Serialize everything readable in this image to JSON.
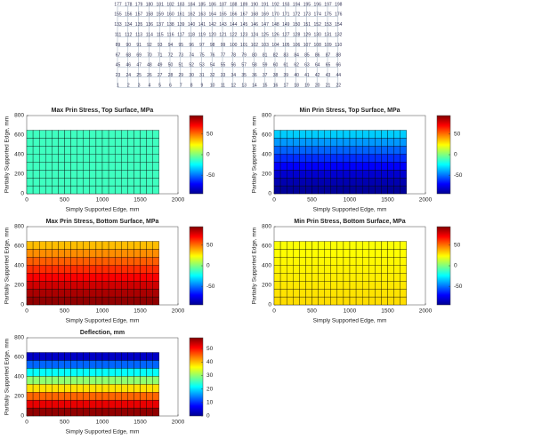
{
  "mesh": {
    "node_rows": [
      [
        177,
        178,
        179,
        180,
        181,
        182,
        183,
        184,
        185,
        186,
        187,
        188,
        189,
        190,
        191,
        192,
        193,
        194,
        195,
        196,
        197,
        198
      ],
      [
        155,
        156,
        157,
        158,
        159,
        160,
        161,
        162,
        163,
        164,
        165,
        166,
        167,
        168,
        169,
        170,
        171,
        172,
        173,
        174,
        175,
        176
      ],
      [
        133,
        134,
        135,
        136,
        137,
        138,
        139,
        140,
        141,
        142,
        143,
        144,
        145,
        146,
        147,
        148,
        149,
        150,
        151,
        152,
        153,
        154
      ],
      [
        111,
        112,
        113,
        114,
        115,
        116,
        117,
        118,
        119,
        120,
        121,
        122,
        123,
        124,
        125,
        126,
        127,
        128,
        129,
        130,
        131,
        132
      ],
      [
        89,
        90,
        91,
        92,
        93,
        94,
        95,
        96,
        97,
        98,
        99,
        100,
        101,
        102,
        103,
        104,
        105,
        106,
        107,
        108,
        109,
        110
      ],
      [
        67,
        68,
        69,
        70,
        71,
        72,
        73,
        74,
        75,
        76,
        77,
        78,
        79,
        80,
        81,
        82,
        83,
        84,
        85,
        86,
        87,
        88
      ],
      [
        45,
        46,
        47,
        48,
        49,
        50,
        51,
        52,
        53,
        54,
        55,
        56,
        57,
        58,
        59,
        60,
        61,
        62,
        63,
        64,
        65,
        66
      ],
      [
        23,
        24,
        25,
        26,
        27,
        28,
        29,
        30,
        31,
        32,
        33,
        34,
        35,
        36,
        37,
        38,
        39,
        40,
        41,
        42,
        43,
        44
      ],
      [
        1,
        2,
        3,
        4,
        5,
        6,
        7,
        8,
        9,
        10,
        11,
        12,
        13,
        14,
        15,
        16,
        17,
        18,
        19,
        20,
        21,
        22
      ]
    ]
  },
  "chart_data": [
    {
      "type": "heatmap",
      "title": "Max Prin Stress, Top Surface, MPa",
      "xlabel": "Simply Supported Edge, mm",
      "ylabel": "Partially Supported Edge, mm",
      "xlim": [
        0,
        2000
      ],
      "xticks": [
        0,
        500,
        1000,
        1500,
        2000
      ],
      "ylim": [
        0,
        800
      ],
      "yticks": [
        0,
        200,
        400,
        600,
        800
      ],
      "clim": [
        -95,
        95
      ],
      "cticks": [
        -50,
        0,
        50
      ],
      "extent": [
        1750,
        650
      ],
      "columns": 21,
      "row_values": [
        -12,
        -12,
        -12,
        -12,
        -12,
        -12,
        -12,
        -12
      ]
    },
    {
      "type": "heatmap",
      "title": "Min Prin Stress, Top Surface, MPa",
      "xlabel": "Simply Supported Edge, mm",
      "ylabel": "Partially Supported Edge, mm",
      "xlim": [
        0,
        2000
      ],
      "xticks": [
        0,
        500,
        1000,
        1500,
        2000
      ],
      "ylim": [
        0,
        800
      ],
      "yticks": [
        0,
        200,
        400,
        600,
        800
      ],
      "clim": [
        -95,
        95
      ],
      "cticks": [
        -50,
        0,
        50
      ],
      "extent": [
        1750,
        650
      ],
      "columns": 21,
      "row_values": [
        -90,
        -86,
        -80,
        -72,
        -63,
        -53,
        -43,
        -33
      ]
    },
    {
      "type": "heatmap",
      "title": "Max Prin Stress, Bottom Surface, MPa",
      "xlabel": "Simply Supported Edge, mm",
      "ylabel": "Partially Supported Edge, mm",
      "xlim": [
        0,
        2000
      ],
      "xticks": [
        0,
        500,
        1000,
        1500,
        2000
      ],
      "ylim": [
        0,
        800
      ],
      "yticks": [
        0,
        200,
        400,
        600,
        800
      ],
      "clim": [
        -95,
        95
      ],
      "cticks": [
        -50,
        0,
        50
      ],
      "extent": [
        1750,
        650
      ],
      "columns": 21,
      "row_values": [
        92,
        87,
        80,
        72,
        63,
        54,
        45,
        36
      ]
    },
    {
      "type": "heatmap",
      "title": "Min Prin Stress, Bottom Surface, MPa",
      "xlabel": "Simply Supported Edge, mm",
      "ylabel": "Partially Supported Edge, mm",
      "xlim": [
        0,
        2000
      ],
      "xticks": [
        0,
        500,
        1000,
        1500,
        2000
      ],
      "ylim": [
        0,
        800
      ],
      "yticks": [
        0,
        200,
        400,
        600,
        800
      ],
      "clim": [
        -95,
        95
      ],
      "cticks": [
        -50,
        0,
        50
      ],
      "extent": [
        1750,
        650
      ],
      "columns": 21,
      "row_values": [
        30,
        29,
        28,
        27,
        26,
        25,
        24,
        23
      ]
    },
    {
      "type": "heatmap",
      "title": "Deflection, mm",
      "xlabel": "Simply Supported Edge, mm",
      "ylabel": "Partially Supported Edge, mm",
      "xlim": [
        0,
        2000
      ],
      "xticks": [
        0,
        500,
        1000,
        1500,
        2000
      ],
      "ylim": [
        0,
        800
      ],
      "yticks": [
        0,
        200,
        400,
        600,
        800
      ],
      "clim": [
        0,
        58
      ],
      "cticks": [
        0,
        10,
        20,
        30,
        40,
        50
      ],
      "extent": [
        1750,
        650
      ],
      "columns": 21,
      "row_values": [
        57,
        52,
        45,
        38,
        30,
        22,
        13,
        4
      ]
    }
  ]
}
